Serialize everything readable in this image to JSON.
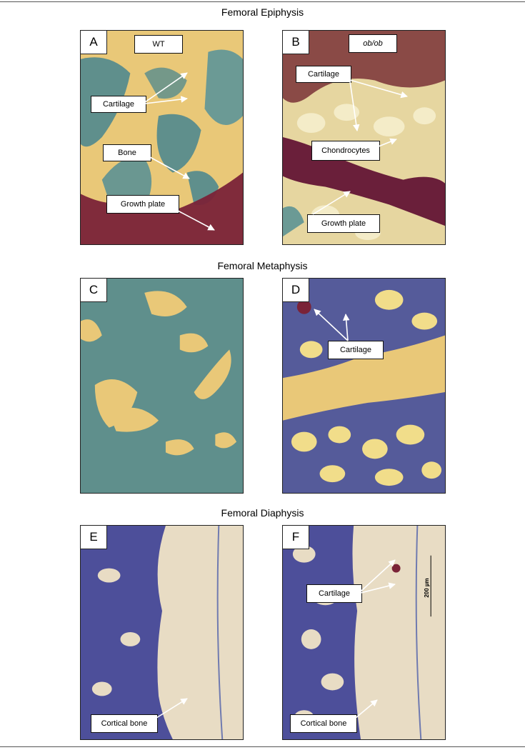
{
  "sections": {
    "epiphysis": "Femoral Epiphysis",
    "metaphysis": "Femoral Metaphysis",
    "diaphysis": "Femoral Diaphysis"
  },
  "panels": {
    "A": {
      "letter": "A",
      "condition": "WT",
      "cartilage": "Cartilage",
      "bone": "Bone",
      "growth_plate": "Growth plate"
    },
    "B": {
      "letter": "B",
      "condition": "ob/ob",
      "cartilage": "Cartilage",
      "chondrocytes": "Chondrocytes",
      "growth_plate": "Growth plate"
    },
    "C": {
      "letter": "C"
    },
    "D": {
      "letter": "D",
      "cartilage": "Cartilage"
    },
    "E": {
      "letter": "E",
      "cortical_bone": "Cortical bone"
    },
    "F": {
      "letter": "F",
      "cartilage": "Cartilage",
      "cortical_bone": "Cortical bone",
      "scale_bar": "200 µm"
    }
  },
  "colors": {
    "bone": "#e9c878",
    "marrow_green": "#5f8f8c",
    "cartilage_red": "#7a2338",
    "marrow_purple": "#4d4f9a",
    "diaphysis_bone": "#e8dcc4"
  }
}
